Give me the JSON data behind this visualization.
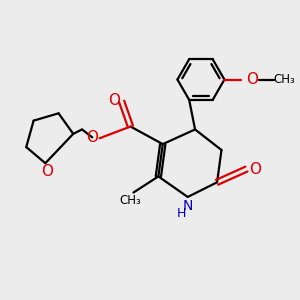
{
  "background_color": "#ececec",
  "line_color": "#000000",
  "red_color": "#dd0000",
  "blue_color": "#0000bb",
  "bond_lw": 1.6,
  "figsize": [
    3.0,
    3.0
  ],
  "dpi": 100,
  "xlim": [
    0,
    10
  ],
  "ylim": [
    0,
    10
  ]
}
